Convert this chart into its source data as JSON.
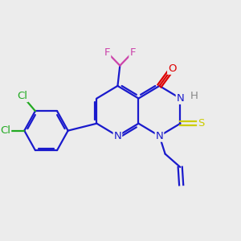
{
  "background_color": "#ececec",
  "bond_color": "#1a1acc",
  "atom_colors": {
    "N": "#1a1acc",
    "O": "#dd0000",
    "S": "#cccc00",
    "F": "#cc44aa",
    "Cl": "#22aa22",
    "H": "#888888",
    "C": "#1a1acc"
  },
  "figsize": [
    3.0,
    3.0
  ],
  "dpi": 100
}
